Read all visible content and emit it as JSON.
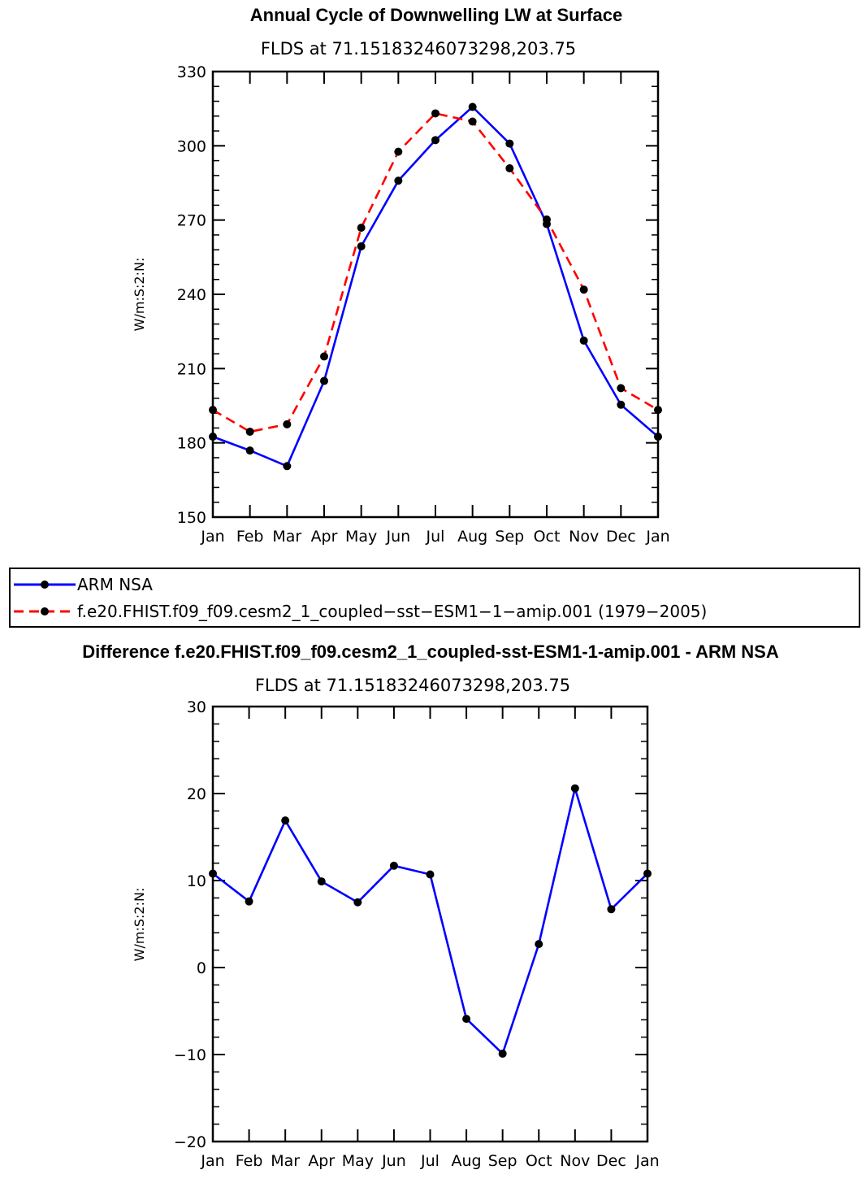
{
  "colors": {
    "obs": "#0000ff",
    "model": "#ff0000",
    "marker": "#000000"
  },
  "chart_data": [
    {
      "type": "line",
      "title": "Annual Cycle of Downwelling LW at Surface",
      "subtitle": "FLDS at 71.15183246073298,203.75",
      "ylabel": "W/m:S:2:N:",
      "xlabel": "",
      "categories": [
        "Jan",
        "Feb",
        "Mar",
        "Apr",
        "May",
        "Jun",
        "Jul",
        "Aug",
        "Sep",
        "Oct",
        "Nov",
        "Dec",
        "Jan"
      ],
      "ylim": [
        150,
        330
      ],
      "yticks": [
        150,
        180,
        210,
        240,
        270,
        300,
        330
      ],
      "grid": false,
      "series": [
        {
          "name": "ARM NSA",
          "style": "solid",
          "color": "#0000ff",
          "values": [
            182.5,
            176.9,
            170.6,
            205.0,
            259.4,
            285.9,
            302.3,
            315.7,
            300.9,
            268.4,
            221.3,
            195.4,
            182.5
          ]
        },
        {
          "name": "f.e20.FHIST.f09_f09.cesm2_1_coupled-sst-ESM1-1-amip.001 (1979-2005)",
          "style": "dashed",
          "color": "#ff0000",
          "values": [
            193.3,
            184.5,
            187.5,
            214.9,
            266.9,
            297.6,
            313.1,
            309.8,
            290.9,
            270.2,
            241.9,
            202.1,
            193.3
          ]
        }
      ],
      "legend": {
        "position": "below",
        "entries": [
          "ARM NSA",
          "f.e20.FHIST.f09_f09.cesm2_1_coupled−sst−ESM1−1−amip.001 (1979−2005)"
        ]
      }
    },
    {
      "type": "line",
      "title": "Difference f.e20.FHIST.f09_f09.cesm2_1_coupled-sst-ESM1-1-amip.001 - ARM NSA",
      "subtitle": "FLDS at 71.15183246073298,203.75",
      "ylabel": "W/m:S:2:N:",
      "xlabel": "",
      "categories": [
        "Jan",
        "Feb",
        "Mar",
        "Apr",
        "May",
        "Jun",
        "Jul",
        "Aug",
        "Sep",
        "Oct",
        "Nov",
        "Dec",
        "Jan"
      ],
      "ylim": [
        -20,
        30
      ],
      "yticks": [
        -20,
        -10,
        0,
        10,
        20,
        30
      ],
      "ytick_labels": [
        "−20",
        "−10",
        "0",
        "10",
        "20",
        "30"
      ],
      "grid": false,
      "series": [
        {
          "style": "solid",
          "color": "#0000ff",
          "values": [
            10.8,
            7.6,
            16.9,
            9.9,
            7.5,
            11.7,
            10.7,
            -5.9,
            -9.9,
            2.7,
            20.6,
            6.7,
            10.8
          ]
        }
      ]
    }
  ]
}
